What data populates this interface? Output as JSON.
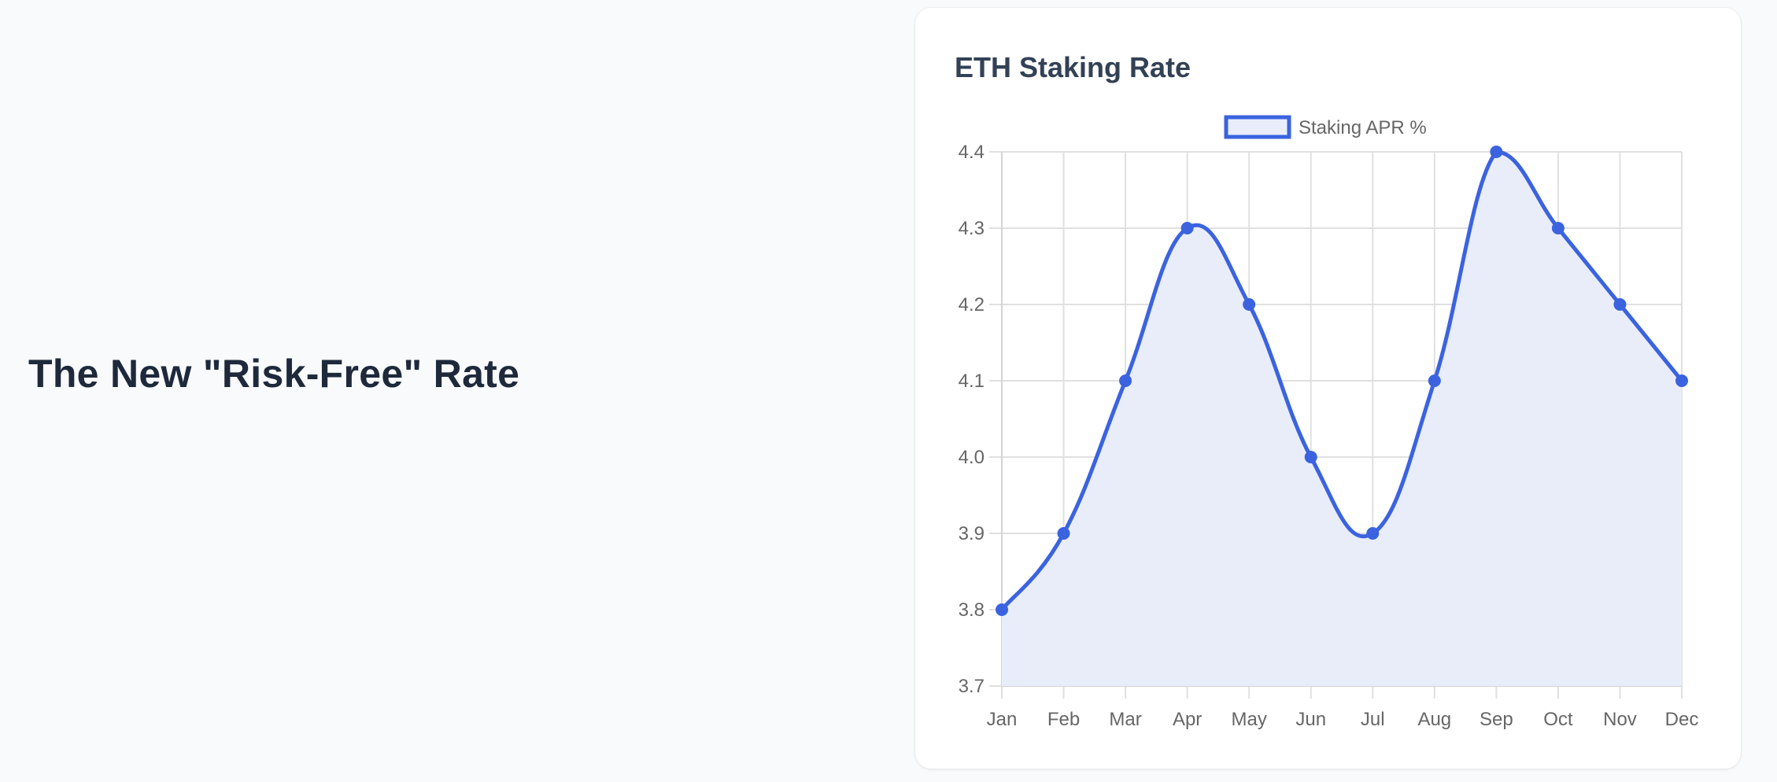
{
  "page": {
    "headline": "The New \"Risk-Free\" Rate"
  },
  "card": {
    "title": "ETH Staking Rate"
  },
  "colors": {
    "background": "#f8fafc",
    "card": "#ffffff",
    "line": "#3b63e0",
    "fill": "#e8edf9",
    "grid": "#e0e0e0",
    "tick_text": "#666666",
    "headline": "#1e293b",
    "title": "#334155"
  },
  "chart_data": {
    "type": "line",
    "title": "ETH Staking Rate",
    "categories": [
      "Jan",
      "Feb",
      "Mar",
      "Apr",
      "May",
      "Jun",
      "Jul",
      "Aug",
      "Sep",
      "Oct",
      "Nov",
      "Dec"
    ],
    "series": [
      {
        "name": "Staking APR %",
        "values": [
          3.8,
          3.9,
          4.1,
          4.3,
          4.2,
          4.0,
          3.9,
          4.1,
          4.4,
          4.3,
          4.2,
          4.1
        ],
        "fill": true,
        "smooth": true
      }
    ],
    "xlabel": "",
    "ylabel": "",
    "ylim": [
      3.7,
      4.4
    ],
    "yticks": [
      "3.7",
      "3.8",
      "3.9",
      "4.0",
      "4.1",
      "4.2",
      "4.3",
      "4.4"
    ],
    "grid": true,
    "legend_position": "top"
  }
}
